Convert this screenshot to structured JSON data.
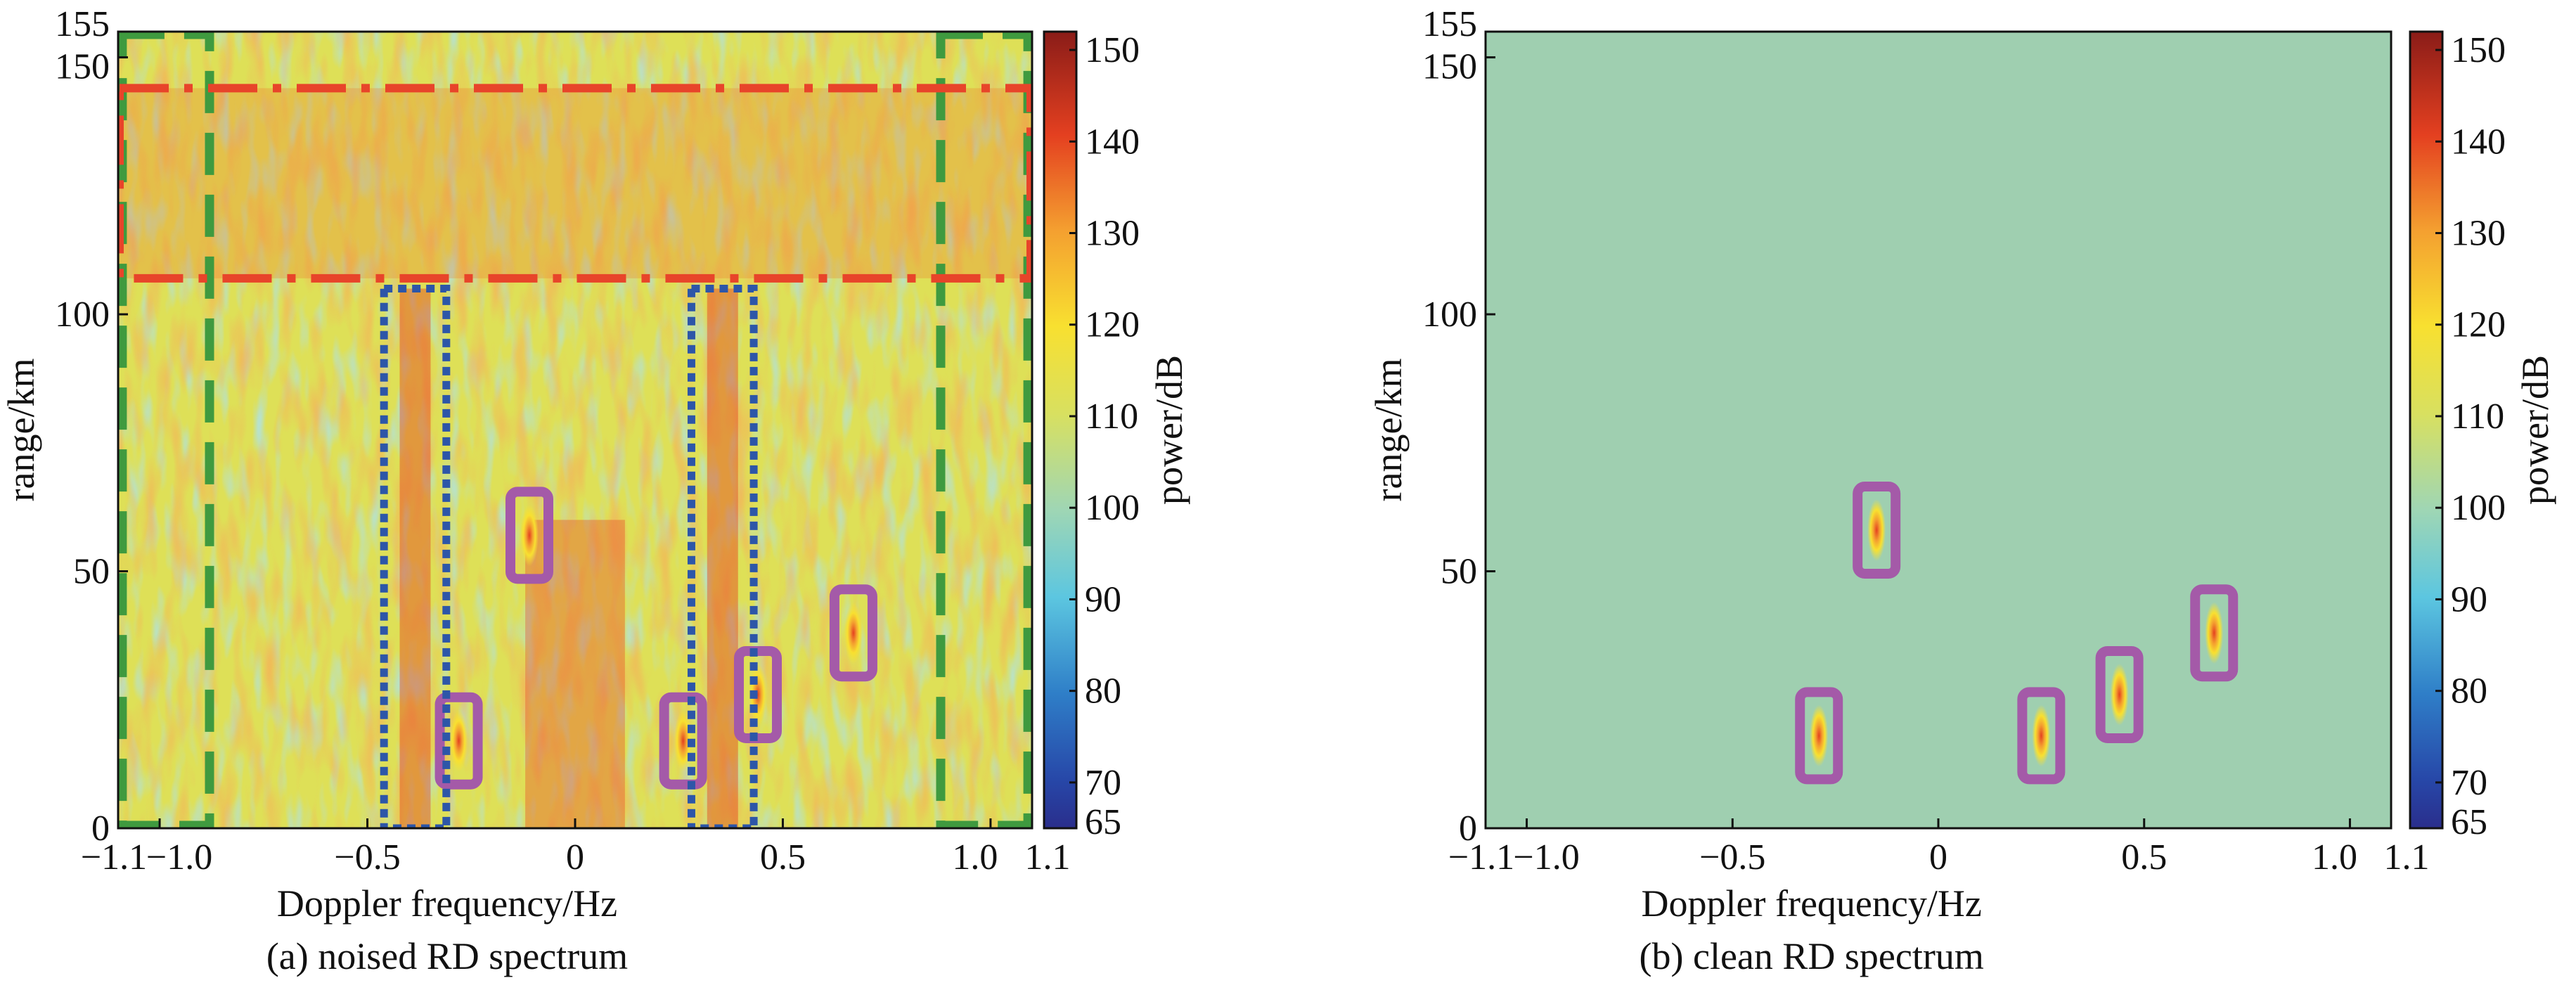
{
  "chart_data": [
    {
      "type": "heatmap",
      "panel": "a",
      "caption": "(a) noised RD spectrum",
      "xlabel": "Doppler frequency/Hz",
      "ylabel": "range/km",
      "xlim": [
        -1.1,
        1.1
      ],
      "ylim": [
        0,
        155
      ],
      "xticks": [
        -1.1,
        -1.0,
        -0.5,
        0,
        0.5,
        1.0,
        1.1
      ],
      "xtick_labels": [
        "−1.1",
        "−1.0",
        "−0.5",
        "0",
        "0.5",
        "1.0",
        "1.1"
      ],
      "yticks": [
        0,
        50,
        100,
        150,
        155
      ],
      "ytick_labels": [
        "0",
        "50",
        "100",
        "150",
        "155"
      ],
      "colorbar": {
        "label": "power/dB",
        "range": [
          65,
          152
        ],
        "ticks": [
          65,
          70,
          80,
          90,
          100,
          110,
          120,
          130,
          140,
          150
        ],
        "tick_labels": [
          "65",
          "70",
          "80",
          "90",
          "100",
          "110",
          "120",
          "130",
          "140",
          "150"
        ]
      },
      "background_level_db": 112,
      "annotations": {
        "green_dashed": [
          {
            "x0": -1.09,
            "x1": -0.88,
            "y0": 0,
            "y1": 155
          },
          {
            "x0": 0.88,
            "x1": 1.09,
            "y0": 0,
            "y1": 155
          }
        ],
        "red_dashdot": [
          {
            "x0": -1.1,
            "x1": 1.1,
            "y0": 107,
            "y1": 144
          }
        ],
        "blue_dotted": [
          {
            "x0": -0.46,
            "x1": -0.31,
            "y0": 0,
            "y1": 105
          },
          {
            "x0": 0.28,
            "x1": 0.43,
            "y0": 0,
            "y1": 105
          }
        ],
        "targets": [
          {
            "x": -0.11,
            "y": 57
          },
          {
            "x": -0.28,
            "y": 17
          },
          {
            "x": 0.26,
            "y": 17
          },
          {
            "x": 0.44,
            "y": 26
          },
          {
            "x": 0.67,
            "y": 38
          }
        ]
      }
    },
    {
      "type": "heatmap",
      "panel": "b",
      "caption": "(b) clean RD spectrum",
      "xlabel": "Doppler frequency/Hz",
      "ylabel": "range/km",
      "xlim": [
        -1.1,
        1.1
      ],
      "ylim": [
        0,
        155
      ],
      "xticks": [
        -1.1,
        -1.0,
        -0.5,
        0,
        0.5,
        1.0,
        1.1
      ],
      "xtick_labels": [
        "−1.1",
        "−1.0",
        "−0.5",
        "0",
        "0.5",
        "1.0",
        "1.1"
      ],
      "yticks": [
        0,
        50,
        100,
        150,
        155
      ],
      "ytick_labels": [
        "0",
        "50",
        "100",
        "150",
        "155"
      ],
      "colorbar": {
        "label": "power/dB",
        "range": [
          65,
          152
        ],
        "ticks": [
          65,
          70,
          80,
          90,
          100,
          110,
          120,
          130,
          140,
          150
        ],
        "tick_labels": [
          "65",
          "70",
          "80",
          "90",
          "100",
          "110",
          "120",
          "130",
          "140",
          "150"
        ]
      },
      "background_level_db": 102,
      "annotations": {
        "targets": [
          {
            "x": -0.15,
            "y": 58
          },
          {
            "x": -0.29,
            "y": 18
          },
          {
            "x": 0.25,
            "y": 18
          },
          {
            "x": 0.44,
            "y": 26
          },
          {
            "x": 0.67,
            "y": 38
          }
        ]
      }
    }
  ],
  "colors": {
    "green_box": "#3f9a3f",
    "red_box": "#e8442a",
    "blue_box": "#2d56a8",
    "target_box": "#a45aa8",
    "clean_background": "#9fcfb0"
  }
}
